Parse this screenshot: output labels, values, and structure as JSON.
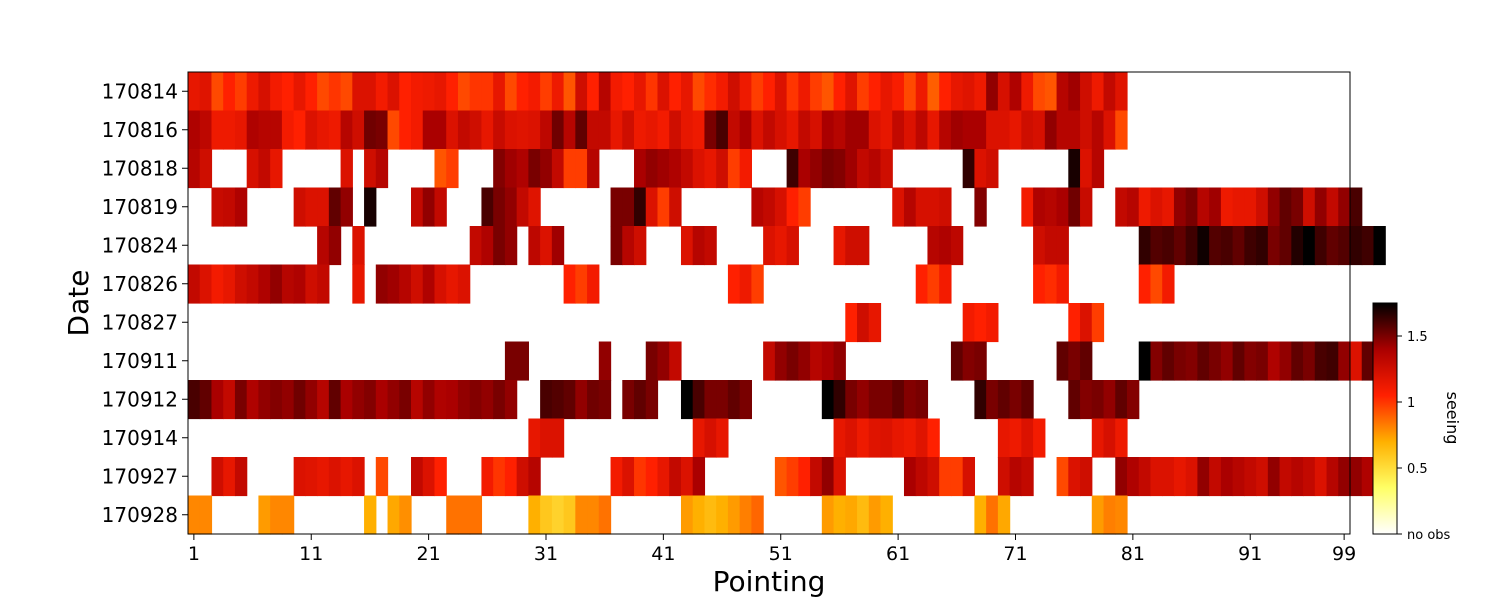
{
  "chart_data": {
    "type": "heatmap",
    "xlabel": "Pointing",
    "ylabel": "Date",
    "x_range": [
      1,
      99
    ],
    "x_ticks": [
      1,
      11,
      21,
      31,
      41,
      51,
      61,
      71,
      81,
      91,
      99
    ],
    "rows": [
      "170814",
      "170816",
      "170818",
      "170819",
      "170824",
      "170826",
      "170827",
      "170911",
      "170912",
      "170914",
      "170927",
      "170928"
    ],
    "colorbar": {
      "label": "seeing",
      "range": [
        0,
        1.75
      ],
      "ticks": [
        {
          "value": 0,
          "label": "no obs"
        },
        {
          "value": 0.5,
          "label": "0.5"
        },
        {
          "value": 1,
          "label": "1"
        },
        {
          "value": 1.5,
          "label": "1.5"
        }
      ],
      "colormap": "hot_r"
    },
    "values": [
      [
        1.15,
        1.18,
        0.95,
        1.05,
        0.98,
        1.12,
        1.22,
        1.1,
        1.05,
        1.15,
        1.05,
        0.95,
        1.0,
        0.95,
        1.2,
        1.2,
        1.1,
        1.2,
        1.05,
        1.1,
        1.12,
        1.15,
        1.05,
        0.95,
        1.0,
        1.0,
        1.15,
        0.95,
        1.05,
        1.1,
        0.98,
        1.12,
        0.92,
        1.25,
        1.05,
        1.35,
        1.1,
        1.05,
        1.15,
        1.0,
        1.2,
        1.05,
        1.15,
        0.95,
        1.02,
        1.1,
        1.25,
        1.12,
        0.98,
        1.05,
        1.2,
        1.0,
        1.12,
        0.98,
        0.92,
        1.05,
        1.18,
        0.98,
        1.05,
        1.15,
        1.08,
        0.95,
        1.12,
        0.9,
        1.05,
        1.15,
        1.18,
        1.12,
        1.45,
        1.22,
        1.38,
        1.12,
        0.95,
        0.92,
        1.35,
        1.42,
        1.25,
        1.12,
        1.3,
        1.18,
        null,
        null,
        null,
        null,
        null,
        null,
        null,
        null,
        null,
        null,
        null,
        null,
        null,
        null,
        null,
        null,
        null,
        null,
        null
      ],
      [
        1.38,
        1.32,
        1.12,
        1.12,
        1.15,
        1.38,
        1.35,
        1.35,
        1.1,
        1.05,
        1.2,
        1.15,
        1.12,
        1.35,
        1.25,
        1.52,
        1.5,
        0.95,
        1.05,
        1.1,
        1.4,
        1.4,
        1.2,
        1.3,
        1.25,
        1.15,
        1.28,
        1.2,
        1.18,
        1.2,
        1.32,
        1.52,
        1.35,
        1.55,
        1.3,
        1.3,
        1.15,
        1.25,
        1.12,
        1.15,
        1.1,
        1.25,
        1.15,
        1.12,
        1.5,
        1.6,
        1.3,
        1.4,
        1.2,
        1.3,
        1.22,
        1.15,
        1.3,
        1.22,
        1.4,
        1.35,
        1.42,
        1.42,
        1.2,
        1.15,
        1.3,
        1.2,
        1.32,
        1.15,
        1.35,
        1.42,
        1.4,
        1.4,
        1.2,
        1.2,
        1.15,
        1.25,
        1.22,
        1.45,
        1.35,
        1.35,
        1.25,
        1.35,
        1.2,
        0.95,
        null,
        null,
        null,
        null,
        null,
        null,
        null,
        null,
        null,
        null,
        null,
        null,
        null,
        null,
        null,
        null,
        null,
        null,
        null
      ],
      [
        1.35,
        1.25,
        null,
        null,
        null,
        1.22,
        1.3,
        1.15,
        null,
        null,
        null,
        null,
        null,
        1.2,
        null,
        1.25,
        1.35,
        null,
        null,
        null,
        null,
        0.92,
        0.98,
        null,
        null,
        null,
        1.48,
        1.42,
        1.38,
        1.5,
        1.45,
        1.3,
        0.98,
        0.98,
        1.35,
        null,
        null,
        null,
        1.4,
        1.45,
        1.42,
        1.38,
        1.3,
        1.2,
        1.15,
        1.25,
        0.98,
        1.1,
        null,
        null,
        null,
        1.62,
        1.4,
        1.45,
        1.5,
        1.48,
        1.42,
        1.3,
        1.35,
        1.25,
        null,
        null,
        null,
        null,
        null,
        null,
        1.65,
        1.2,
        1.25,
        null,
        null,
        null,
        null,
        null,
        null,
        1.7,
        1.2,
        1.35,
        null,
        null,
        null,
        null,
        null,
        null,
        null,
        null,
        null,
        null,
        null,
        null,
        null,
        null,
        null,
        null,
        null,
        null,
        null,
        null,
        null
      ],
      [
        null,
        null,
        1.28,
        1.3,
        1.38,
        null,
        null,
        null,
        null,
        1.25,
        1.2,
        1.2,
        1.55,
        1.45,
        null,
        1.7,
        null,
        null,
        null,
        1.3,
        1.45,
        1.3,
        null,
        null,
        null,
        1.6,
        1.5,
        1.45,
        1.3,
        1.18,
        null,
        null,
        null,
        null,
        null,
        null,
        1.5,
        1.5,
        1.65,
        1.2,
        0.98,
        1.25,
        null,
        null,
        null,
        null,
        null,
        null,
        1.35,
        1.3,
        1.22,
        1.05,
        0.98,
        null,
        null,
        null,
        null,
        null,
        null,
        null,
        1.2,
        1.35,
        1.22,
        1.22,
        1.25,
        null,
        null,
        1.48,
        null,
        null,
        null,
        1.1,
        1.38,
        1.35,
        1.4,
        1.52,
        1.28,
        null,
        null,
        1.3,
        1.35,
        1.12,
        1.2,
        1.15,
        1.45,
        1.5,
        1.35,
        1.42,
        1.12,
        1.15,
        1.15,
        1.25,
        1.45,
        1.55,
        1.5,
        1.25,
        1.45,
        1.3,
        1.45,
        1.6
      ],
      [
        null,
        null,
        null,
        null,
        null,
        null,
        null,
        null,
        null,
        null,
        null,
        1.35,
        1.45,
        null,
        1.2,
        null,
        null,
        null,
        null,
        null,
        null,
        null,
        null,
        null,
        1.3,
        1.38,
        1.5,
        1.45,
        null,
        1.32,
        1.2,
        1.42,
        null,
        null,
        null,
        null,
        1.5,
        1.35,
        1.25,
        null,
        null,
        null,
        1.2,
        1.35,
        1.3,
        null,
        null,
        null,
        null,
        1.2,
        1.15,
        1.22,
        null,
        null,
        null,
        1.15,
        1.25,
        1.25,
        null,
        null,
        null,
        null,
        null,
        1.35,
        1.38,
        1.32,
        null,
        null,
        null,
        null,
        null,
        null,
        1.25,
        1.3,
        1.3,
        null,
        null,
        null,
        null,
        null,
        null,
        1.65,
        1.58,
        1.6,
        1.55,
        1.62,
        1.72,
        1.58,
        1.6,
        1.55,
        1.62,
        1.65,
        1.5,
        1.55,
        1.68,
        1.75,
        1.62,
        1.55,
        1.58,
        1.65,
        1.62,
        1.75
      ],
      [
        1.3,
        1.2,
        1.1,
        1.15,
        1.25,
        1.3,
        1.38,
        1.45,
        1.35,
        1.38,
        1.25,
        1.3,
        null,
        null,
        1.15,
        null,
        1.45,
        1.42,
        1.35,
        1.25,
        1.38,
        1.22,
        1.15,
        1.2,
        null,
        null,
        null,
        null,
        null,
        null,
        null,
        null,
        1.05,
        0.98,
        1.1,
        null,
        null,
        null,
        null,
        null,
        null,
        null,
        null,
        null,
        null,
        null,
        1.05,
        1.12,
        0.98,
        null,
        null,
        null,
        null,
        null,
        null,
        null,
        null,
        null,
        null,
        null,
        null,
        null,
        1.05,
        0.98,
        1.1,
        null,
        null,
        null,
        null,
        null,
        null,
        null,
        1.05,
        1.02,
        1.1,
        null,
        null,
        null,
        null,
        null,
        null,
        1.05,
        0.95,
        1.1,
        null,
        null,
        null,
        null,
        null,
        null,
        null,
        null,
        null,
        null,
        null,
        null,
        null,
        null,
        null,
        null,
        null
      ],
      [
        null,
        null,
        null,
        null,
        null,
        null,
        null,
        null,
        null,
        null,
        null,
        null,
        null,
        null,
        null,
        null,
        null,
        null,
        null,
        null,
        null,
        null,
        null,
        null,
        null,
        null,
        null,
        null,
        null,
        null,
        null,
        null,
        null,
        null,
        null,
        null,
        null,
        null,
        null,
        null,
        null,
        null,
        null,
        null,
        null,
        null,
        null,
        null,
        null,
        null,
        null,
        null,
        null,
        null,
        null,
        null,
        1.05,
        1.25,
        1.15,
        null,
        null,
        null,
        null,
        null,
        null,
        null,
        1.1,
        1.05,
        1.1,
        null,
        null,
        null,
        null,
        null,
        null,
        1.05,
        1.2,
        0.98,
        null,
        null,
        null,
        null,
        null,
        null,
        null,
        null,
        null,
        null,
        null,
        null,
        null,
        null,
        null,
        null,
        null,
        null,
        null,
        null,
        null
      ],
      [
        null,
        null,
        null,
        null,
        null,
        null,
        null,
        null,
        null,
        null,
        null,
        null,
        null,
        null,
        null,
        null,
        null,
        null,
        null,
        null,
        null,
        null,
        null,
        null,
        null,
        null,
        null,
        1.5,
        1.5,
        null,
        null,
        null,
        null,
        null,
        null,
        1.45,
        null,
        null,
        null,
        1.5,
        1.45,
        1.3,
        null,
        null,
        null,
        null,
        null,
        null,
        null,
        1.3,
        1.45,
        1.5,
        1.45,
        1.35,
        1.4,
        1.45,
        null,
        null,
        null,
        null,
        null,
        null,
        null,
        null,
        null,
        1.55,
        1.48,
        1.5,
        null,
        null,
        null,
        null,
        null,
        null,
        1.55,
        1.5,
        1.55,
        null,
        null,
        null,
        null,
        1.75,
        1.48,
        1.55,
        1.5,
        1.48,
        1.55,
        1.5,
        1.45,
        1.55,
        1.48,
        1.5,
        1.38,
        1.45,
        1.55,
        1.5,
        1.6,
        1.62,
        1.45,
        1.2,
        1.55,
        1.35
      ],
      [
        1.6,
        1.55,
        1.4,
        1.3,
        1.5,
        1.38,
        1.45,
        1.48,
        1.45,
        1.52,
        1.45,
        1.35,
        1.55,
        1.4,
        1.45,
        1.48,
        1.4,
        1.45,
        1.5,
        1.35,
        1.45,
        1.38,
        1.4,
        1.45,
        1.48,
        1.45,
        1.5,
        1.45,
        null,
        null,
        1.6,
        1.58,
        1.55,
        1.45,
        1.52,
        1.5,
        null,
        1.5,
        1.55,
        1.5,
        null,
        null,
        1.75,
        1.6,
        1.5,
        1.5,
        1.55,
        1.5,
        null,
        null,
        null,
        null,
        null,
        null,
        1.75,
        1.65,
        1.5,
        1.45,
        1.5,
        1.5,
        1.55,
        1.48,
        1.5,
        null,
        null,
        null,
        null,
        1.65,
        1.5,
        1.55,
        1.5,
        1.55,
        null,
        null,
        null,
        1.55,
        1.48,
        1.5,
        1.45,
        1.55,
        1.48,
        null,
        null,
        null,
        null,
        null,
        null,
        null,
        null,
        null,
        null,
        null,
        null,
        null,
        null,
        null,
        null,
        null,
        null
      ],
      [
        null,
        null,
        null,
        null,
        null,
        null,
        null,
        null,
        null,
        null,
        null,
        null,
        null,
        null,
        null,
        null,
        null,
        null,
        null,
        null,
        null,
        null,
        null,
        null,
        null,
        null,
        null,
        null,
        null,
        1.15,
        1.2,
        1.2,
        null,
        null,
        null,
        null,
        null,
        null,
        null,
        null,
        null,
        null,
        null,
        1.15,
        1.22,
        1.15,
        null,
        null,
        null,
        null,
        null,
        null,
        null,
        null,
        null,
        1.15,
        1.2,
        1.12,
        1.18,
        1.2,
        1.15,
        1.12,
        1.18,
        1.05,
        null,
        null,
        null,
        null,
        null,
        1.15,
        1.12,
        1.2,
        1.1,
        null,
        null,
        null,
        null,
        1.15,
        1.22,
        1.12,
        null,
        null,
        null,
        null,
        null,
        null,
        null,
        null,
        null,
        null,
        null,
        null,
        null,
        null,
        null,
        null,
        null,
        null,
        null
      ],
      [
        null,
        null,
        1.25,
        1.15,
        1.3,
        null,
        null,
        null,
        null,
        1.2,
        1.18,
        1.15,
        1.2,
        1.15,
        1.2,
        null,
        0.95,
        null,
        null,
        1.3,
        1.2,
        1.05,
        null,
        null,
        null,
        1.1,
        1.0,
        1.05,
        1.25,
        1.35,
        null,
        null,
        null,
        null,
        null,
        null,
        1.1,
        1.2,
        1.0,
        1.05,
        1.15,
        1.3,
        1.2,
        1.4,
        null,
        null,
        null,
        null,
        null,
        null,
        0.92,
        0.98,
        1.05,
        1.3,
        1.45,
        1.2,
        null,
        null,
        null,
        null,
        null,
        1.4,
        1.32,
        1.25,
        0.98,
        0.98,
        1.22,
        null,
        null,
        1.25,
        1.35,
        1.3,
        null,
        null,
        0.95,
        1.2,
        1.25,
        null,
        null,
        1.45,
        1.38,
        1.3,
        1.2,
        1.2,
        1.15,
        1.2,
        1.45,
        1.3,
        1.4,
        1.35,
        1.3,
        1.25,
        1.45,
        1.3,
        1.35,
        1.3,
        1.2,
        1.35,
        1.45,
        1.45,
        1.38
      ],
      [
        0.8,
        0.8,
        null,
        null,
        null,
        null,
        0.75,
        0.8,
        0.8,
        null,
        null,
        null,
        null,
        null,
        null,
        0.7,
        null,
        0.72,
        0.78,
        null,
        null,
        null,
        0.85,
        0.85,
        0.85,
        null,
        null,
        null,
        null,
        0.7,
        0.6,
        0.55,
        0.6,
        0.8,
        0.8,
        0.85,
        null,
        null,
        null,
        null,
        null,
        null,
        0.75,
        0.7,
        0.65,
        0.7,
        0.75,
        0.82,
        0.88,
        null,
        null,
        null,
        null,
        null,
        0.75,
        0.7,
        0.72,
        0.65,
        0.75,
        0.7,
        null,
        null,
        null,
        null,
        null,
        null,
        null,
        0.7,
        0.85,
        0.72,
        null,
        null,
        null,
        null,
        null,
        null,
        null,
        0.75,
        0.82,
        0.8,
        null,
        null,
        null,
        null,
        null,
        null,
        null,
        null,
        null,
        null,
        null,
        null,
        null,
        null,
        null,
        null,
        null,
        null,
        null
      ]
    ]
  }
}
